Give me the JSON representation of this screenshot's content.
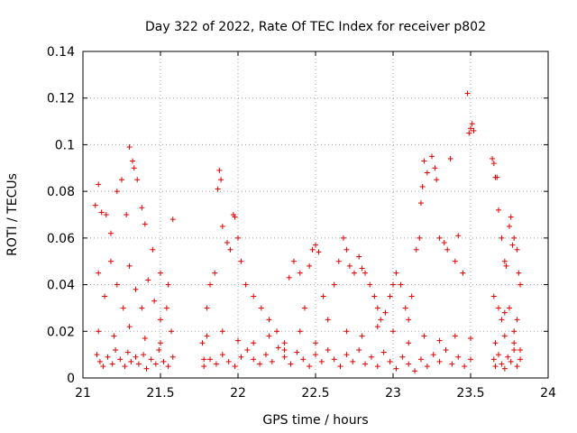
{
  "chart_data": {
    "type": "scatter",
    "title": "Day 322 of 2022, Rate Of TEC Index for receiver p802",
    "xlabel": "GPS time / hours",
    "ylabel": "ROTI / TECUs",
    "xlim": [
      21,
      24
    ],
    "ylim": [
      0,
      0.14
    ],
    "xticks": [
      "21",
      "21.5",
      "22",
      "22.5",
      "23",
      "23.5",
      "24"
    ],
    "yticks": [
      "0",
      "0.02",
      "0.04",
      "0.06",
      "0.08",
      "0.1",
      "0.12",
      "0.14"
    ],
    "grid": true,
    "marker": "+",
    "color": "#e00000",
    "series": [
      {
        "name": "ROTI",
        "segments": [
          {
            "start": 21.08,
            "end": 21.59
          },
          {
            "start": 21.75,
            "end": 22.6
          },
          {
            "start": 22.6,
            "end": 23.53
          },
          {
            "start": 23.64,
            "end": 23.82
          }
        ],
        "points": [
          [
            21.08,
            0.074
          ],
          [
            21.1,
            0.083
          ],
          [
            21.12,
            0.071
          ],
          [
            21.15,
            0.07
          ],
          [
            21.18,
            0.062
          ],
          [
            21.22,
            0.08
          ],
          [
            21.25,
            0.085
          ],
          [
            21.28,
            0.07
          ],
          [
            21.3,
            0.099
          ],
          [
            21.32,
            0.093
          ],
          [
            21.33,
            0.09
          ],
          [
            21.35,
            0.085
          ],
          [
            21.38,
            0.073
          ],
          [
            21.4,
            0.066
          ],
          [
            21.45,
            0.055
          ],
          [
            21.5,
            0.045
          ],
          [
            21.55,
            0.04
          ],
          [
            21.58,
            0.068
          ],
          [
            21.1,
            0.045
          ],
          [
            21.14,
            0.035
          ],
          [
            21.18,
            0.05
          ],
          [
            21.22,
            0.04
          ],
          [
            21.26,
            0.03
          ],
          [
            21.3,
            0.048
          ],
          [
            21.34,
            0.038
          ],
          [
            21.38,
            0.03
          ],
          [
            21.42,
            0.042
          ],
          [
            21.46,
            0.033
          ],
          [
            21.5,
            0.025
          ],
          [
            21.54,
            0.03
          ],
          [
            21.57,
            0.02
          ],
          [
            21.09,
            0.01
          ],
          [
            21.11,
            0.007
          ],
          [
            21.13,
            0.005
          ],
          [
            21.16,
            0.009
          ],
          [
            21.19,
            0.006
          ],
          [
            21.21,
            0.012
          ],
          [
            21.24,
            0.008
          ],
          [
            21.27,
            0.005
          ],
          [
            21.29,
            0.011
          ],
          [
            21.31,
            0.007
          ],
          [
            21.34,
            0.009
          ],
          [
            21.36,
            0.006
          ],
          [
            21.39,
            0.01
          ],
          [
            21.41,
            0.004
          ],
          [
            21.44,
            0.008
          ],
          [
            21.47,
            0.006
          ],
          [
            21.49,
            0.012
          ],
          [
            21.52,
            0.007
          ],
          [
            21.55,
            0.005
          ],
          [
            21.58,
            0.009
          ],
          [
            21.1,
            0.02
          ],
          [
            21.2,
            0.018
          ],
          [
            21.3,
            0.022
          ],
          [
            21.4,
            0.017
          ],
          [
            21.5,
            0.015
          ],
          [
            21.77,
            0.015
          ],
          [
            21.78,
            0.008
          ],
          [
            21.8,
            0.03
          ],
          [
            21.82,
            0.04
          ],
          [
            21.85,
            0.045
          ],
          [
            21.87,
            0.081
          ],
          [
            21.88,
            0.089
          ],
          [
            21.89,
            0.085
          ],
          [
            21.9,
            0.065
          ],
          [
            21.93,
            0.058
          ],
          [
            21.95,
            0.055
          ],
          [
            21.97,
            0.07
          ],
          [
            21.98,
            0.069
          ],
          [
            22.0,
            0.06
          ],
          [
            22.02,
            0.05
          ],
          [
            22.05,
            0.04
          ],
          [
            22.1,
            0.035
          ],
          [
            22.15,
            0.03
          ],
          [
            22.2,
            0.025
          ],
          [
            22.25,
            0.02
          ],
          [
            22.3,
            0.015
          ],
          [
            22.33,
            0.043
          ],
          [
            22.36,
            0.05
          ],
          [
            22.4,
            0.045
          ],
          [
            22.43,
            0.03
          ],
          [
            22.46,
            0.048
          ],
          [
            22.48,
            0.055
          ],
          [
            22.5,
            0.057
          ],
          [
            22.52,
            0.054
          ],
          [
            22.55,
            0.035
          ],
          [
            22.58,
            0.025
          ],
          [
            21.78,
            0.005
          ],
          [
            21.82,
            0.008
          ],
          [
            21.86,
            0.006
          ],
          [
            21.9,
            0.01
          ],
          [
            21.94,
            0.007
          ],
          [
            21.98,
            0.005
          ],
          [
            22.02,
            0.009
          ],
          [
            22.06,
            0.012
          ],
          [
            22.1,
            0.008
          ],
          [
            22.14,
            0.006
          ],
          [
            22.18,
            0.01
          ],
          [
            22.22,
            0.007
          ],
          [
            22.26,
            0.013
          ],
          [
            22.3,
            0.009
          ],
          [
            22.34,
            0.006
          ],
          [
            22.38,
            0.011
          ],
          [
            22.42,
            0.008
          ],
          [
            22.46,
            0.005
          ],
          [
            22.5,
            0.01
          ],
          [
            22.54,
            0.007
          ],
          [
            22.58,
            0.012
          ],
          [
            21.8,
            0.018
          ],
          [
            21.9,
            0.02
          ],
          [
            22.0,
            0.016
          ],
          [
            22.1,
            0.015
          ],
          [
            22.2,
            0.018
          ],
          [
            22.3,
            0.012
          ],
          [
            22.4,
            0.02
          ],
          [
            22.5,
            0.015
          ],
          [
            22.62,
            0.04
          ],
          [
            22.65,
            0.05
          ],
          [
            22.68,
            0.06
          ],
          [
            22.7,
            0.055
          ],
          [
            22.72,
            0.048
          ],
          [
            22.75,
            0.045
          ],
          [
            22.78,
            0.052
          ],
          [
            22.8,
            0.047
          ],
          [
            22.82,
            0.045
          ],
          [
            22.85,
            0.04
          ],
          [
            22.88,
            0.035
          ],
          [
            22.9,
            0.03
          ],
          [
            22.92,
            0.025
          ],
          [
            22.95,
            0.028
          ],
          [
            22.98,
            0.035
          ],
          [
            23.0,
            0.04
          ],
          [
            23.02,
            0.045
          ],
          [
            23.05,
            0.04
          ],
          [
            23.08,
            0.03
          ],
          [
            23.1,
            0.025
          ],
          [
            23.12,
            0.035
          ],
          [
            23.15,
            0.055
          ],
          [
            23.17,
            0.06
          ],
          [
            23.18,
            0.075
          ],
          [
            23.19,
            0.082
          ],
          [
            23.2,
            0.093
          ],
          [
            23.22,
            0.088
          ],
          [
            23.25,
            0.095
          ],
          [
            23.27,
            0.09
          ],
          [
            23.28,
            0.085
          ],
          [
            23.3,
            0.06
          ],
          [
            23.33,
            0.058
          ],
          [
            23.35,
            0.055
          ],
          [
            23.37,
            0.094
          ],
          [
            23.4,
            0.05
          ],
          [
            23.42,
            0.061
          ],
          [
            23.45,
            0.045
          ],
          [
            23.48,
            0.122
          ],
          [
            23.49,
            0.105
          ],
          [
            23.5,
            0.107
          ],
          [
            23.51,
            0.109
          ],
          [
            23.52,
            0.106
          ],
          [
            22.62,
            0.008
          ],
          [
            22.66,
            0.005
          ],
          [
            22.7,
            0.01
          ],
          [
            22.74,
            0.007
          ],
          [
            22.78,
            0.012
          ],
          [
            22.82,
            0.006
          ],
          [
            22.86,
            0.009
          ],
          [
            22.9,
            0.005
          ],
          [
            22.94,
            0.011
          ],
          [
            22.98,
            0.007
          ],
          [
            23.02,
            0.004
          ],
          [
            23.06,
            0.009
          ],
          [
            23.1,
            0.006
          ],
          [
            23.14,
            0.003
          ],
          [
            23.18,
            0.008
          ],
          [
            23.22,
            0.005
          ],
          [
            23.26,
            0.01
          ],
          [
            23.3,
            0.007
          ],
          [
            23.34,
            0.012
          ],
          [
            23.38,
            0.006
          ],
          [
            23.42,
            0.009
          ],
          [
            23.46,
            0.005
          ],
          [
            23.5,
            0.008
          ],
          [
            22.7,
            0.02
          ],
          [
            22.8,
            0.018
          ],
          [
            22.9,
            0.022
          ],
          [
            23.0,
            0.02
          ],
          [
            23.1,
            0.015
          ],
          [
            23.2,
            0.018
          ],
          [
            23.3,
            0.016
          ],
          [
            23.4,
            0.018
          ],
          [
            23.5,
            0.017
          ],
          [
            23.64,
            0.094
          ],
          [
            23.65,
            0.092
          ],
          [
            23.66,
            0.086
          ],
          [
            23.67,
            0.086
          ],
          [
            23.68,
            0.072
          ],
          [
            23.7,
            0.06
          ],
          [
            23.72,
            0.05
          ],
          [
            23.73,
            0.048
          ],
          [
            23.75,
            0.065
          ],
          [
            23.76,
            0.069
          ],
          [
            23.77,
            0.057
          ],
          [
            23.78,
            0.06
          ],
          [
            23.8,
            0.055
          ],
          [
            23.81,
            0.045
          ],
          [
            23.82,
            0.04
          ],
          [
            23.65,
            0.035
          ],
          [
            23.68,
            0.03
          ],
          [
            23.7,
            0.025
          ],
          [
            23.72,
            0.028
          ],
          [
            23.75,
            0.03
          ],
          [
            23.78,
            0.02
          ],
          [
            23.8,
            0.025
          ],
          [
            23.65,
            0.008
          ],
          [
            23.66,
            0.005
          ],
          [
            23.68,
            0.01
          ],
          [
            23.7,
            0.006
          ],
          [
            23.72,
            0.004
          ],
          [
            23.74,
            0.009
          ],
          [
            23.76,
            0.007
          ],
          [
            23.78,
            0.012
          ],
          [
            23.8,
            0.005
          ],
          [
            23.82,
            0.008
          ],
          [
            23.66,
            0.015
          ],
          [
            23.72,
            0.018
          ],
          [
            23.78,
            0.015
          ],
          [
            23.82,
            0.012
          ]
        ]
      }
    ]
  }
}
